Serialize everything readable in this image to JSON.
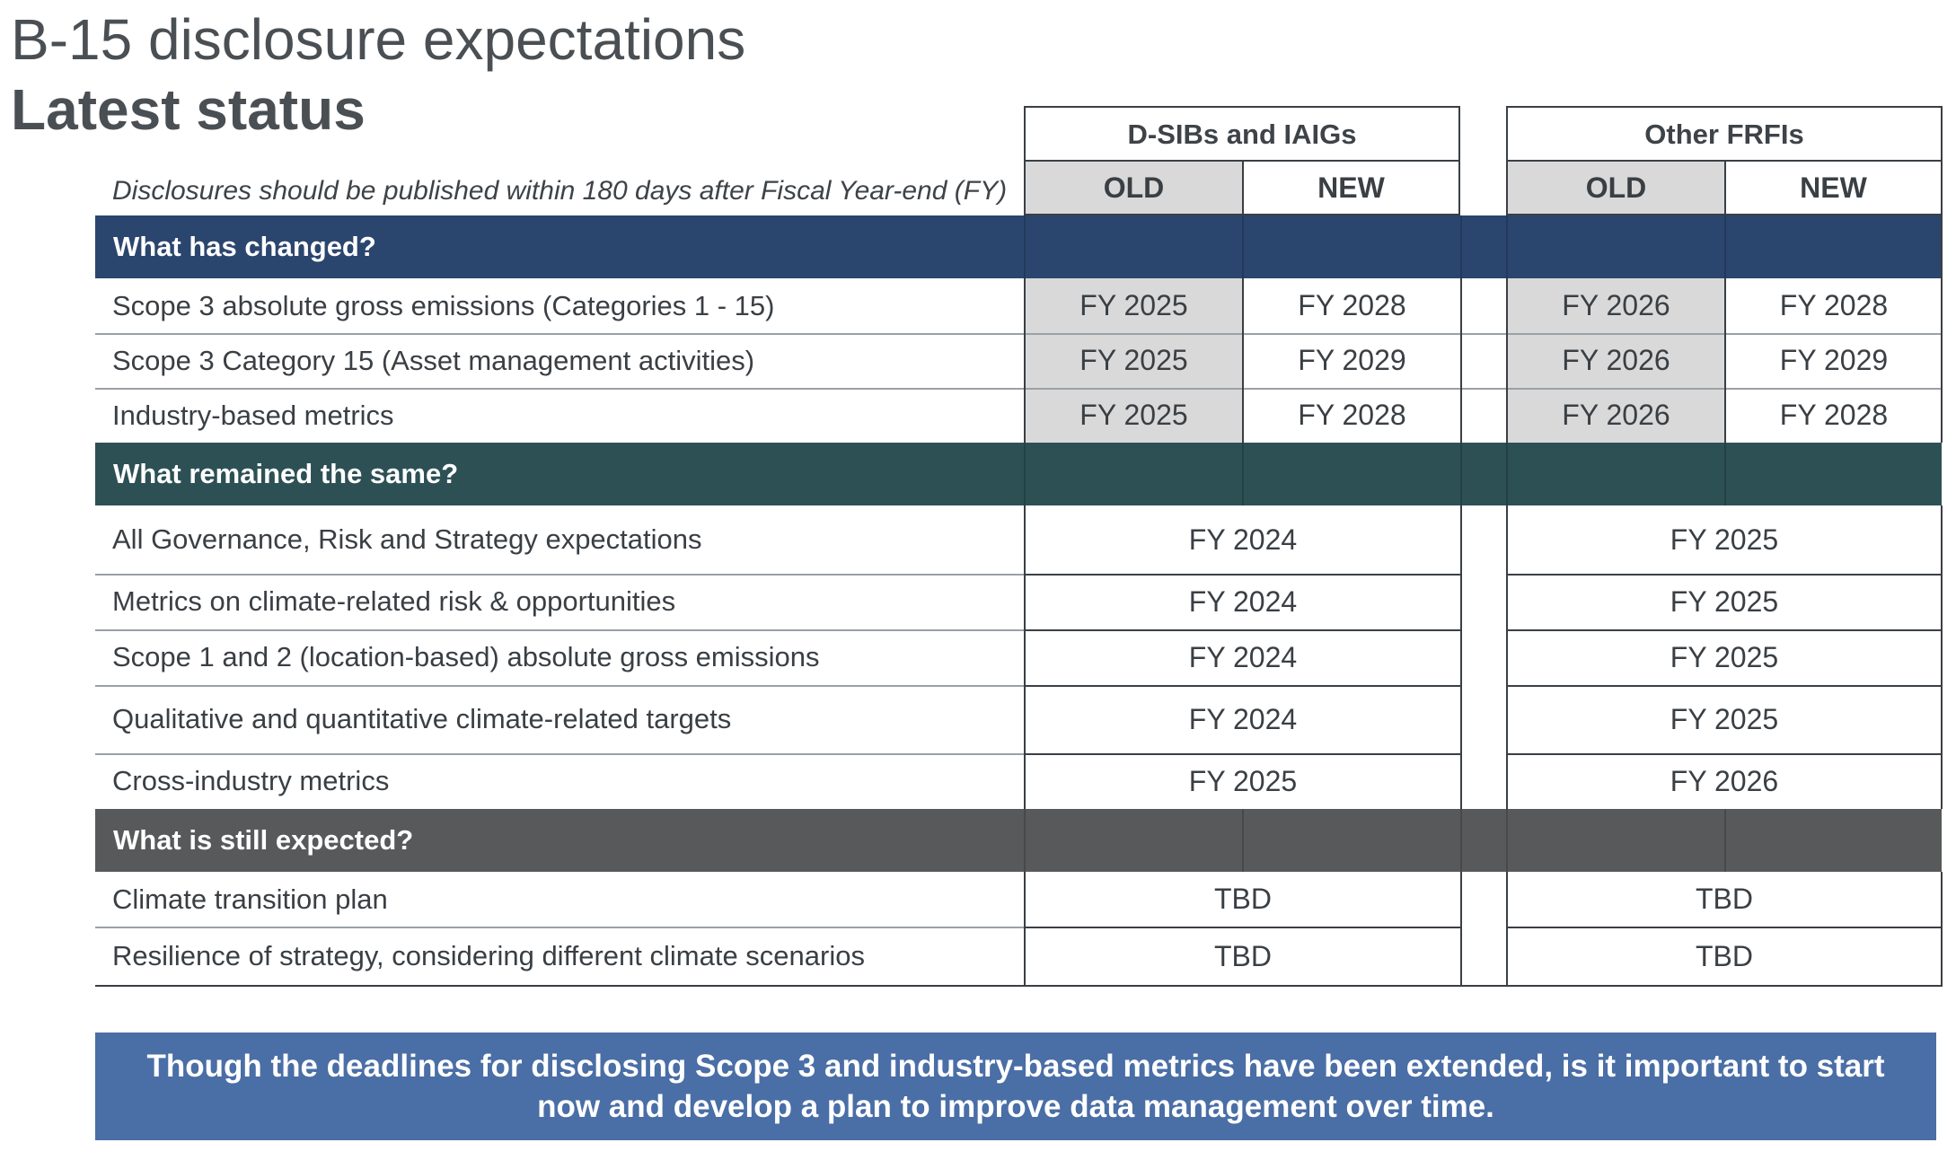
{
  "title": "B-15 disclosure expectations",
  "subtitle": "Latest status",
  "note": "Disclosures should be published within 180 days after Fiscal Year-end (FY)",
  "groups": [
    {
      "name": "D-SIBs and IAIGs",
      "old": "OLD",
      "new": "NEW"
    },
    {
      "name": "Other FRFIs",
      "old": "OLD",
      "new": "NEW"
    }
  ],
  "sections": {
    "changed": {
      "title": "What has changed?",
      "rows": [
        {
          "label": "Scope 3 absolute gross emissions (Categories 1 - 15)",
          "dsib_old": "FY 2025",
          "dsib_new": "FY 2028",
          "frfi_old": "FY 2026",
          "frfi_new": "FY 2028"
        },
        {
          "label": "Scope 3 Category 15 (Asset management activities)",
          "dsib_old": "FY 2025",
          "dsib_new": "FY 2029",
          "frfi_old": "FY 2026",
          "frfi_new": "FY 2029"
        },
        {
          "label": "Industry-based metrics",
          "dsib_old": "FY 2025",
          "dsib_new": "FY 2028",
          "frfi_old": "FY 2026",
          "frfi_new": "FY 2028"
        }
      ]
    },
    "same": {
      "title": "What remained the same?",
      "rows": [
        {
          "label": "All Governance, Risk and Strategy expectations",
          "dsib": "FY 2024",
          "frfi": "FY 2025"
        },
        {
          "label": "Metrics on climate-related risk & opportunities",
          "dsib": "FY 2024",
          "frfi": "FY 2025"
        },
        {
          "label": "Scope 1 and 2 (location-based) absolute gross emissions",
          "dsib": "FY 2024",
          "frfi": "FY 2025"
        },
        {
          "label": "Qualitative and quantitative climate-related targets",
          "dsib": "FY 2024",
          "frfi": "FY 2025"
        },
        {
          "label": "Cross-industry metrics",
          "dsib": "FY 2025",
          "frfi": "FY 2026"
        }
      ]
    },
    "expected": {
      "title": "What is still expected?",
      "rows": [
        {
          "label": "Climate transition plan",
          "dsib": "TBD",
          "frfi": "TBD"
        },
        {
          "label": "Resilience of strategy, considering different climate scenarios",
          "dsib": "TBD",
          "frfi": "TBD"
        }
      ]
    }
  },
  "callout": "Though the deadlines for disclosing Scope 3 and industry-based metrics have been extended, is it important to start now and develop a plan to improve data management over time."
}
